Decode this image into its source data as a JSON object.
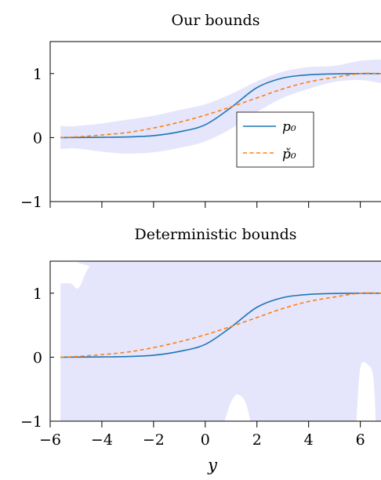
{
  "chart_data": [
    {
      "type": "line",
      "title": "Our bounds",
      "xlabel": "",
      "ylabel": "",
      "xlim": [
        -6,
        6.8
      ],
      "ylim": [
        -1,
        1.5
      ],
      "yticks": [
        1,
        0,
        -1
      ],
      "xticks": [
        -6,
        -4,
        -2,
        0,
        2,
        4,
        6
      ],
      "show_xtick_labels": false,
      "grid": false,
      "legend_position": "center-right",
      "series": [
        {
          "name": "p₀",
          "style": "solid",
          "color": "#1f77b4",
          "x": [
            -5.6,
            -5,
            -4,
            -3,
            -2,
            -1,
            0,
            1,
            2,
            3,
            4,
            5,
            6,
            6.8
          ],
          "y": [
            0.0,
            0.001,
            0.004,
            0.01,
            0.03,
            0.09,
            0.2,
            0.47,
            0.78,
            0.93,
            0.98,
            0.995,
            1.0,
            1.0
          ]
        },
        {
          "name": "p̌₀",
          "style": "dashed",
          "color": "#ff7f0e",
          "x": [
            -5.6,
            -5,
            -4,
            -3,
            -2,
            -1,
            0,
            1,
            2,
            3,
            4,
            5,
            6,
            6.8
          ],
          "y": [
            0.0,
            0.01,
            0.04,
            0.08,
            0.15,
            0.24,
            0.35,
            0.48,
            0.62,
            0.76,
            0.87,
            0.94,
            1.0,
            1.0
          ]
        }
      ],
      "band": {
        "color": "#e5e5fc",
        "x": [
          -5.6,
          -5,
          -4,
          -3,
          -2,
          -1,
          0,
          1,
          2,
          3,
          4,
          5,
          6,
          6.8
        ],
        "upper": [
          0.18,
          0.18,
          0.22,
          0.28,
          0.34,
          0.43,
          0.52,
          0.68,
          0.88,
          1.03,
          1.1,
          1.12,
          1.2,
          1.22
        ],
        "lower": [
          -0.18,
          -0.17,
          -0.22,
          -0.25,
          -0.23,
          -0.16,
          -0.06,
          0.14,
          0.4,
          0.62,
          0.76,
          0.87,
          0.9,
          0.85
        ]
      }
    },
    {
      "type": "line",
      "title": "Deterministic bounds",
      "xlabel": "y",
      "ylabel": "",
      "xlim": [
        -6,
        6.8
      ],
      "ylim": [
        -1,
        1.5
      ],
      "yticks": [
        1,
        0,
        -1
      ],
      "xticks": [
        -6,
        -4,
        -2,
        0,
        2,
        4,
        6
      ],
      "xtick_labels": [
        "−6",
        "−4",
        "−2",
        "0",
        "2",
        "4",
        "6"
      ],
      "show_xtick_labels": true,
      "grid": false,
      "series": [
        {
          "style": "solid",
          "color": "#1f77b4",
          "x": [
            -5.6,
            -5,
            -4,
            -3,
            -2,
            -1,
            0,
            1,
            2,
            3,
            4,
            5,
            6,
            6.8
          ],
          "y": [
            0.0,
            0.001,
            0.004,
            0.01,
            0.03,
            0.09,
            0.2,
            0.47,
            0.78,
            0.93,
            0.98,
            0.995,
            1.0,
            1.0
          ]
        },
        {
          "style": "dashed",
          "color": "#ff7f0e",
          "x": [
            -5.6,
            -5,
            -4,
            -3,
            -2,
            -1,
            0,
            1,
            2,
            3,
            4,
            5,
            6,
            6.8
          ],
          "y": [
            0.0,
            0.01,
            0.04,
            0.08,
            0.15,
            0.24,
            0.35,
            0.48,
            0.62,
            0.76,
            0.87,
            0.94,
            1.0,
            1.0
          ]
        }
      ],
      "band": {
        "color": "#e5e5fc",
        "x": [
          -5.6,
          -5.2,
          -4.9,
          -4.5,
          -4,
          6.8
        ],
        "upper": [
          1.15,
          1.15,
          1.08,
          1.4,
          1.5,
          1.5
        ],
        "lower": [
          -1,
          -1,
          -1,
          -1,
          -1,
          -1
        ],
        "gaps": [
          {
            "x": [
              0.75,
              1.0,
              1.25,
              1.55,
              1.75
            ],
            "y": [
              -1,
              -0.7,
              -0.58,
              -0.7,
              -1
            ]
          },
          {
            "x": [
              5.85,
              6.0,
              6.3,
              6.5,
              6.6
            ],
            "y": [
              -1,
              -0.16,
              -0.12,
              -0.3,
              -1
            ]
          }
        ]
      }
    }
  ]
}
